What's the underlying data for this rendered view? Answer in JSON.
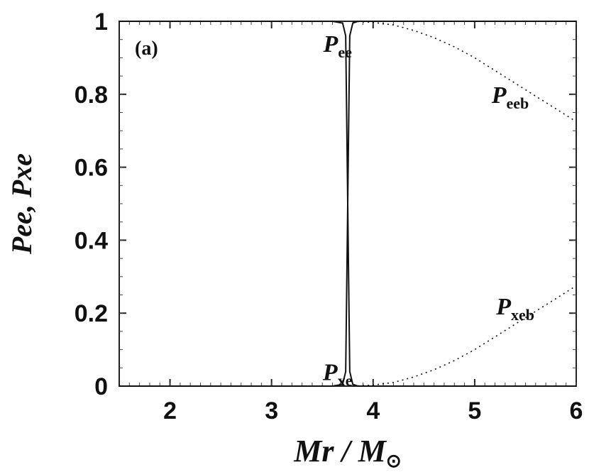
{
  "chart_data": {
    "type": "line",
    "panel_label": "(a)",
    "xlabel": "Mr / M",
    "xlabel_sun_symbol": "⊙",
    "ylabel": "Pee, Pxe",
    "xlim": [
      1.5,
      6
    ],
    "ylim": [
      0,
      1
    ],
    "x_ticks": [
      2,
      3,
      4,
      5,
      6
    ],
    "y_ticks": [
      0,
      0.2,
      0.4,
      0.6,
      0.8,
      1
    ],
    "y_tick_labels": [
      "0",
      "0.2",
      "0.4",
      "0.6",
      "0.8",
      "1"
    ],
    "series": [
      {
        "name": "Pee",
        "style": "solid",
        "x": [
          1.5,
          3.6,
          3.7,
          3.73,
          3.75,
          3.77,
          3.8,
          3.85,
          3.95,
          6
        ],
        "y": [
          1.0,
          1.0,
          0.995,
          0.96,
          0.5,
          0.04,
          0.005,
          0.0,
          0.0,
          0.0
        ]
      },
      {
        "name": "Pxe",
        "style": "solid",
        "x": [
          1.5,
          3.6,
          3.7,
          3.73,
          3.75,
          3.77,
          3.8,
          3.85,
          3.95,
          6
        ],
        "y": [
          0.0,
          0.0,
          0.005,
          0.04,
          0.5,
          0.96,
          0.995,
          1.0,
          1.0,
          1.0
        ]
      },
      {
        "name": "Peeb",
        "style": "dotted",
        "x": [
          3.8,
          4.0,
          4.2,
          4.4,
          4.6,
          4.8,
          5.0,
          5.2,
          5.4,
          5.6,
          5.8,
          6.0
        ],
        "y": [
          1.0,
          0.997,
          0.99,
          0.975,
          0.955,
          0.93,
          0.9,
          0.865,
          0.83,
          0.795,
          0.76,
          0.725
        ]
      },
      {
        "name": "Pxeb",
        "style": "dotted",
        "x": [
          3.8,
          4.0,
          4.2,
          4.4,
          4.6,
          4.8,
          5.0,
          5.2,
          5.4,
          5.6,
          5.8,
          6.0
        ],
        "y": [
          0.0,
          0.003,
          0.01,
          0.025,
          0.045,
          0.07,
          0.1,
          0.135,
          0.17,
          0.205,
          0.24,
          0.275
        ]
      }
    ],
    "annotations": [
      {
        "main": "P",
        "sub": "ee",
        "x": 3.65,
        "y": 0.94
      },
      {
        "main": "P",
        "sub": "eeb",
        "x": 5.35,
        "y": 0.8
      },
      {
        "main": "P",
        "sub": "xeb",
        "x": 5.4,
        "y": 0.22
      },
      {
        "main": "P",
        "sub": "xe",
        "x": 3.65,
        "y": 0.04
      }
    ],
    "grid": false,
    "legend": "none"
  }
}
